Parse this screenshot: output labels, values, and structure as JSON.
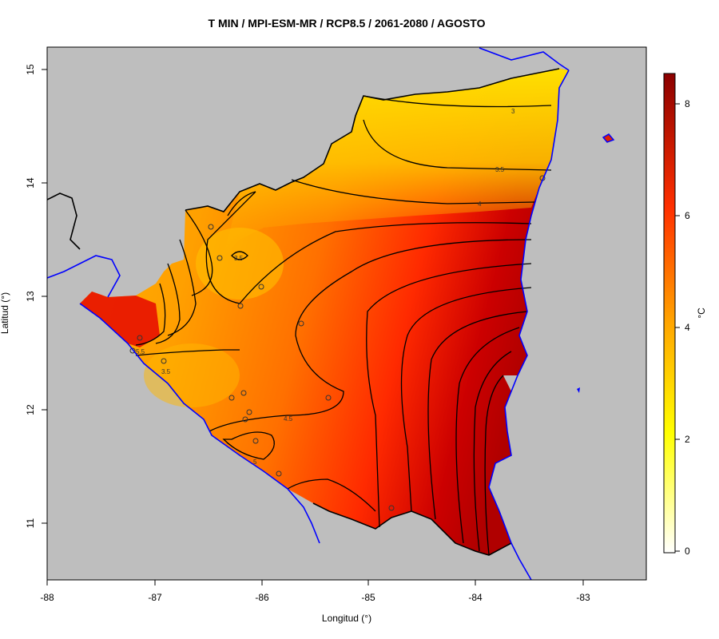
{
  "title": "T MIN / MPI-ESM-MR / RCP8.5 / 2061-2080 / AGOSTO",
  "axes": {
    "xlabel": "Longitud (°)",
    "ylabel": "Latitud (°)",
    "xticks": [
      "-88",
      "-87",
      "-86",
      "-85",
      "-84",
      "-83"
    ],
    "yticks": [
      "11",
      "12",
      "13",
      "14",
      "15"
    ]
  },
  "colorbar": {
    "unit": "°C",
    "ticks": [
      "0",
      "2",
      "4",
      "6",
      "8"
    ],
    "range": [
      -0.3,
      8.6
    ],
    "colors": [
      "#ffffff",
      "#ffff00",
      "#ffa500",
      "#ff3000",
      "#8b0000"
    ]
  },
  "contour_labels": [
    "3",
    "3.5",
    "4",
    "3.5",
    "4.5",
    "5",
    "5.5",
    "3.5"
  ],
  "colors": {
    "background": "#bebebe",
    "coastline": "#0000ff",
    "border": "#000000"
  }
}
